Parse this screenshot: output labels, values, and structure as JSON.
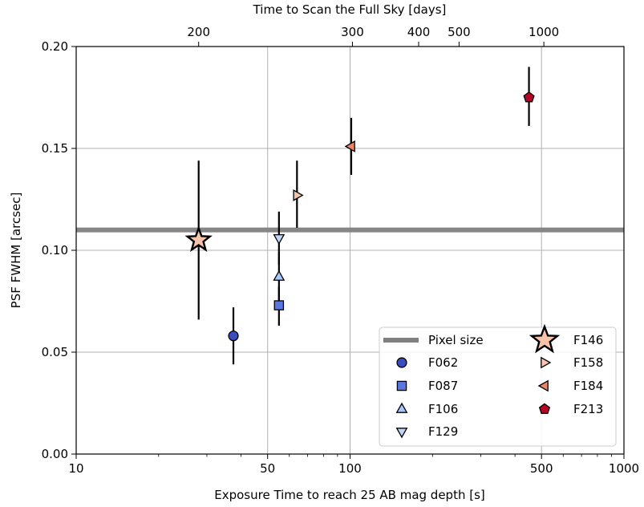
{
  "chart_data": {
    "type": "scatter",
    "xlabel": "Exposure Time to reach 25 AB mag depth [s]",
    "ylabel": "PSF FWHM [arcsec]",
    "top_xlabel": "Time to Scan the Full Sky [days]",
    "xscale": "log",
    "xlim": [
      10,
      1000
    ],
    "ylim": [
      0.0,
      0.2
    ],
    "grid": true,
    "legend_position": "lower-right",
    "x_ticks": [
      {
        "value": 10,
        "label": "10"
      },
      {
        "value": 50,
        "label": "50"
      },
      {
        "value": 100,
        "label": "100"
      },
      {
        "value": 500,
        "label": "500"
      },
      {
        "value": 1000,
        "label": "1000"
      }
    ],
    "y_ticks": [
      {
        "value": 0.0,
        "label": "0.00"
      },
      {
        "value": 0.05,
        "label": "0.05"
      },
      {
        "value": 0.1,
        "label": "0.10"
      },
      {
        "value": 0.15,
        "label": "0.15"
      },
      {
        "value": 0.2,
        "label": "0.20"
      }
    ],
    "top_ticks": [
      {
        "value": 28.0,
        "label": "200"
      },
      {
        "value": 102.0,
        "label": "300"
      },
      {
        "value": 178.0,
        "label": "400"
      },
      {
        "value": 250.0,
        "label": "500"
      },
      {
        "value": 510.0,
        "label": "1000"
      }
    ],
    "hline": {
      "name": "Pixel size",
      "y": 0.11,
      "color": "#808080"
    },
    "series": [
      {
        "name": "F062",
        "marker": "circle",
        "color": "#3b4cc0",
        "x": 37.5,
        "y": 0.058,
        "yerr_low": 0.044,
        "yerr_high": 0.072
      },
      {
        "name": "F087",
        "marker": "square",
        "color": "#5977e3",
        "x": 55,
        "y": 0.073,
        "yerr_low": 0.063,
        "yerr_high": 0.082
      },
      {
        "name": "F106",
        "marker": "triangle-up",
        "color": "#aac7fd",
        "x": 55,
        "y": 0.087,
        "yerr_low": 0.075,
        "yerr_high": 0.099
      },
      {
        "name": "F129",
        "marker": "triangle-down",
        "color": "#c0d4f5",
        "x": 55,
        "y": 0.106,
        "yerr_low": 0.093,
        "yerr_high": 0.119
      },
      {
        "name": "F146",
        "marker": "star",
        "color": "#f7c4ab",
        "x": 28,
        "y": 0.105,
        "yerr_low": 0.066,
        "yerr_high": 0.144
      },
      {
        "name": "F158",
        "marker": "triangle-right",
        "color": "#f4c5ad",
        "x": 64,
        "y": 0.127,
        "yerr_low": 0.111,
        "yerr_high": 0.144
      },
      {
        "name": "F184",
        "marker": "triangle-left",
        "color": "#ee8468",
        "x": 101,
        "y": 0.151,
        "yerr_low": 0.137,
        "yerr_high": 0.165
      },
      {
        "name": "F213",
        "marker": "pentagon",
        "color": "#b40426",
        "x": 450,
        "y": 0.175,
        "yerr_low": 0.161,
        "yerr_high": 0.19
      }
    ]
  }
}
